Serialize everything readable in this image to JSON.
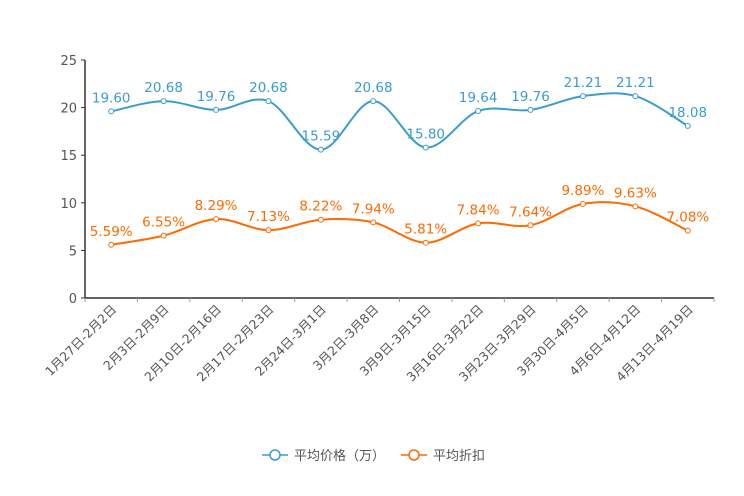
{
  "chart_data": {
    "type": "line",
    "categories": [
      "1月27日-2月2日",
      "2月3日-2月9日",
      "2月10日-2月16日",
      "2月17日-2月23日",
      "2月24日-3月1日",
      "3月2日-3月8日",
      "3月9日-3月15日",
      "3月16日-3月22日",
      "3月23日-3月29日",
      "3月30日-4月5日",
      "4月6日-4月12日",
      "4月13日-4月19日"
    ],
    "series": [
      {
        "name": "平均价格（万）",
        "color": "#3b9cd0",
        "values": [
          19.6,
          20.68,
          19.76,
          20.68,
          15.59,
          20.68,
          15.8,
          19.64,
          19.76,
          21.21,
          21.21,
          18.08
        ],
        "labels": [
          "19.60",
          "20.68",
          "19.76",
          "20.68",
          "15.59",
          "20.68",
          "15.80",
          "19.64",
          "19.76",
          "21.21",
          "21.21",
          "18.08"
        ]
      },
      {
        "name": "平均折扣",
        "color": "#ff6a00",
        "values": [
          5.59,
          6.55,
          8.29,
          7.13,
          8.22,
          7.94,
          5.81,
          7.84,
          7.64,
          9.89,
          9.63,
          7.08
        ],
        "labels": [
          "5.59%",
          "6.55%",
          "8.29%",
          "7.13%",
          "8.22%",
          "7.94%",
          "5.81%",
          "7.84%",
          "7.64%",
          "9.89%",
          "9.63%",
          "7.08%"
        ]
      }
    ],
    "yticks": [
      "0",
      "5",
      "10",
      "15",
      "20",
      "25"
    ],
    "ylim": [
      0,
      25
    ],
    "legend": "bottom"
  }
}
